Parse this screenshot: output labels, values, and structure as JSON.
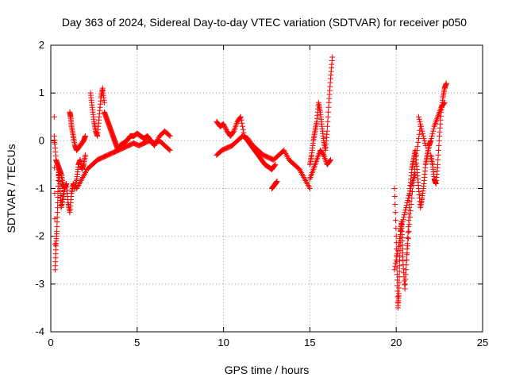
{
  "chart_data": {
    "type": "scatter",
    "title": "Day 363 of 2024, Sidereal Day-to-day VTEC variation (SDTVAR) for receiver p050",
    "xlabel": "GPS time / hours",
    "ylabel": "SDTVAR / TECUs",
    "xlim": [
      0,
      25
    ],
    "ylim": [
      -4,
      2
    ],
    "xticks": [
      0,
      5,
      10,
      15,
      20,
      25
    ],
    "yticks": [
      -4,
      -3,
      -2,
      -1,
      0,
      1,
      2
    ],
    "grid": true,
    "marker": "plus",
    "color": "#ff0000",
    "series": [
      {
        "name": "SDTVAR",
        "segments": [
          {
            "x": [
              0.2,
              0.25,
              0.3,
              0.35,
              0.4,
              0.45,
              0.5,
              0.55,
              0.6,
              0.7,
              0.8,
              0.9,
              1.0,
              1.1,
              1.2,
              1.3,
              1.4,
              1.5,
              1.6,
              1.7,
              1.8,
              1.9,
              2.0
            ],
            "y": [
              0.5,
              -2.7,
              -2.2,
              -1.9,
              -1.3,
              -0.6,
              -0.8,
              -1.1,
              -1.4,
              -1.2,
              -1.0,
              -0.9,
              -1.3,
              -1.5,
              -1.1,
              -0.9,
              -1.0,
              -0.8,
              -0.5,
              -0.4,
              -0.6,
              -0.5,
              -0.3
            ]
          },
          {
            "x": [
              0.2,
              0.3,
              0.4,
              0.5,
              0.6,
              0.7,
              0.8
            ],
            "y": [
              0.1,
              -0.4,
              -0.5,
              -0.6,
              -0.7,
              -0.9,
              -1.0
            ]
          },
          {
            "x": [
              1.1,
              1.15,
              1.2,
              1.3,
              1.4,
              1.5,
              1.7,
              1.9,
              2.0
            ],
            "y": [
              0.6,
              0.5,
              0.3,
              0.1,
              -0.1,
              -0.2,
              -0.1,
              0.0,
              0.1
            ]
          },
          {
            "x": [
              2.3,
              2.4,
              2.5,
              2.6,
              2.7,
              2.8,
              2.9,
              3.0,
              3.1
            ],
            "y": [
              1.0,
              0.7,
              0.4,
              0.2,
              0.1,
              0.5,
              0.9,
              1.1,
              0.8
            ]
          },
          {
            "x": [
              3.1,
              3.2,
              3.3,
              3.4,
              3.5,
              3.6,
              3.7,
              3.8,
              3.9,
              4.0,
              4.2,
              4.4,
              4.6,
              4.8,
              5.0,
              5.2,
              5.4,
              5.6,
              5.8,
              6.0,
              6.3,
              6.6,
              6.9
            ],
            "y": [
              0.6,
              0.5,
              0.4,
              0.3,
              0.2,
              0.1,
              0.0,
              -0.1,
              -0.2,
              -0.1,
              -0.05,
              0.0,
              0.1,
              0.1,
              0.15,
              0.1,
              0.05,
              0.1,
              0.0,
              -0.1,
              0.1,
              0.2,
              0.1
            ]
          },
          {
            "x": [
              1.5,
              1.8,
              2.1,
              2.4,
              2.7,
              3.0,
              3.3,
              3.6,
              3.9,
              4.2,
              4.5,
              4.8,
              5.1,
              5.4,
              5.7,
              6.0,
              6.3,
              6.6,
              6.9
            ],
            "y": [
              -1.0,
              -0.8,
              -0.6,
              -0.5,
              -0.4,
              -0.35,
              -0.3,
              -0.25,
              -0.2,
              -0.15,
              -0.1,
              -0.05,
              -0.1,
              -0.05,
              0.0,
              -0.05,
              0.0,
              -0.1,
              -0.2
            ]
          },
          {
            "x": [
              9.6,
              9.8,
              10.0,
              10.2,
              10.4,
              10.6,
              10.8,
              11.0,
              11.2,
              11.4,
              11.6,
              11.8,
              12.0,
              12.2,
              12.4,
              12.6,
              12.8,
              13.0
            ],
            "y": [
              0.4,
              0.3,
              0.35,
              0.2,
              0.1,
              0.2,
              0.4,
              0.5,
              0.1,
              0.0,
              -0.1,
              -0.2,
              -0.3,
              -0.4,
              -0.5,
              -0.55,
              -0.6,
              -0.5
            ]
          },
          {
            "x": [
              9.6,
              9.9,
              10.2,
              10.5,
              10.8,
              11.1,
              11.4,
              11.7,
              12.0,
              12.3,
              12.6,
              12.9,
              13.2,
              13.5,
              13.8,
              14.1,
              14.4,
              14.7,
              15.0
            ],
            "y": [
              -0.3,
              -0.2,
              -0.15,
              -0.1,
              0.0,
              0.1,
              0.05,
              -0.1,
              -0.2,
              -0.3,
              -0.35,
              -0.4,
              -0.3,
              -0.2,
              -0.4,
              -0.5,
              -0.6,
              -0.8,
              -1.0
            ]
          },
          {
            "x": [
              12.8,
              12.9,
              13.0,
              13.1
            ],
            "y": [
              -1.0,
              -0.95,
              -0.9,
              -0.85
            ]
          },
          {
            "x": [
              15.0,
              15.1,
              15.2,
              15.3,
              15.4,
              15.5,
              15.6,
              15.7,
              15.8,
              15.9,
              16.0,
              16.1,
              16.2,
              16.3
            ],
            "y": [
              -0.5,
              -0.3,
              0.0,
              0.2,
              0.4,
              0.8,
              0.6,
              0.3,
              0.0,
              -0.2,
              0.2,
              0.8,
              1.3,
              1.75
            ]
          },
          {
            "x": [
              15.0,
              15.2,
              15.4,
              15.6,
              15.8,
              16.0,
              16.2
            ],
            "y": [
              -0.8,
              -0.6,
              -0.4,
              -0.2,
              -0.3,
              -0.5,
              -0.4
            ]
          },
          {
            "x": [
              19.9,
              20.0,
              20.05,
              20.1,
              20.15,
              20.2,
              20.25,
              20.3,
              20.35,
              20.4,
              20.5,
              20.6,
              20.7,
              20.8,
              20.9,
              21.0,
              21.1,
              21.2,
              21.3,
              21.4,
              21.5,
              21.6,
              21.7,
              21.8,
              21.9,
              22.0
            ],
            "y": [
              -1.0,
              -2.0,
              -2.8,
              -3.5,
              -3.2,
              -2.5,
              -1.9,
              -1.7,
              -2.1,
              -2.6,
              -3.1,
              -2.5,
              -1.8,
              -1.0,
              -0.6,
              -0.4,
              -0.2,
              -0.6,
              -1.0,
              -1.4,
              -1.2,
              -0.9,
              -0.5,
              -0.3,
              -0.1,
              0.0
            ]
          },
          {
            "x": [
              19.9,
              20.1,
              20.3,
              20.5,
              20.7,
              20.9,
              21.1
            ],
            "y": [
              -2.7,
              -2.3,
              -1.8,
              -1.5,
              -1.2,
              -0.9,
              -0.7
            ]
          },
          {
            "x": [
              20.6,
              20.8,
              21.0,
              21.2,
              21.4
            ],
            "y": [
              -2.5,
              -1.6,
              -0.8,
              -0.2,
              0.3
            ]
          },
          {
            "x": [
              21.3,
              21.5,
              21.7
            ],
            "y": [
              0.5,
              0.2,
              -0.1
            ]
          },
          {
            "x": [
              22.0,
              22.1,
              22.2,
              22.3,
              22.4,
              22.5,
              22.6,
              22.7,
              22.8,
              22.9
            ],
            "y": [
              -0.3,
              -0.5,
              -0.8,
              -0.9,
              -0.5,
              0.1,
              0.6,
              0.9,
              1.1,
              1.2
            ]
          },
          {
            "x": [
              22.0,
              22.2,
              22.4,
              22.6,
              22.8
            ],
            "y": [
              0.0,
              0.3,
              0.5,
              0.7,
              0.8
            ]
          }
        ]
      }
    ]
  }
}
